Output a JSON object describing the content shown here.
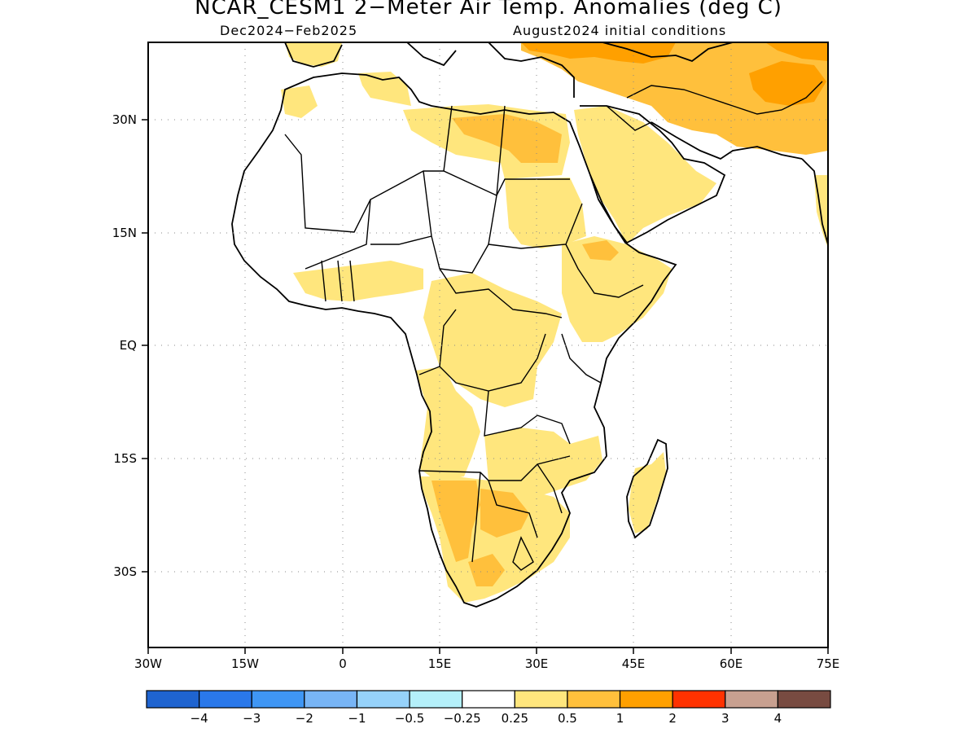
{
  "title": "NCAR_CESM1 2−Meter Air Temp. Anomalies (deg C)",
  "subtitle_left": "Dec2024−Feb2025",
  "subtitle_right": "August2024 initial conditions",
  "map": {
    "lon_range": [
      -30,
      75
    ],
    "lat_range": [
      -40,
      40
    ],
    "lat_ticks": [
      "30N",
      "15N",
      "EQ",
      "15S",
      "30S"
    ],
    "lon_ticks": [
      "30W",
      "15W",
      "0",
      "15E",
      "30E",
      "45E",
      "60E",
      "75E"
    ],
    "grid": "dotted"
  },
  "colorbar": {
    "colors": [
      "#1f64d0",
      "#2a78ea",
      "#3f96f4",
      "#78b5f6",
      "#96d2fa",
      "#b4f0fa",
      "#ffffff",
      "#ffe67d",
      "#ffc03c",
      "#ffa000",
      "#ff3200",
      "#c8a090",
      "#784b41"
    ],
    "labels": [
      "−4",
      "−3",
      "−2",
      "−1",
      "−0.5",
      "−0.25",
      "0.25",
      "0.5",
      "1",
      "2",
      "3",
      "4"
    ]
  },
  "anomaly_colors": {
    "light": "#ffe67d",
    "medium": "#ffc03c",
    "strong": "#ffa000"
  }
}
